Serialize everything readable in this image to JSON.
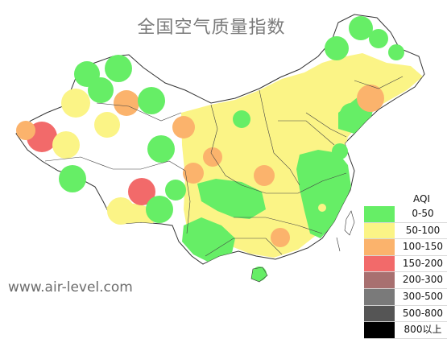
{
  "map": {
    "title": "全国空气质量指数",
    "watermark": "www.air-level.com",
    "colors": {
      "land": "#ffffff",
      "outline": "#333333",
      "green": "#66ee66",
      "yellow": "#fbf486",
      "orange": "#fbb36c",
      "red": "#f26a6a"
    },
    "legend": {
      "title": "AQI",
      "items": [
        {
          "label": "0-50",
          "color": "#66ee66"
        },
        {
          "label": "50-100",
          "color": "#fbf486"
        },
        {
          "label": "100-150",
          "color": "#fbb36c"
        },
        {
          "label": "150-200",
          "color": "#f26a6a"
        },
        {
          "label": "200-300",
          "color": "#a87070"
        },
        {
          "label": "300-500",
          "color": "#7a7a7a"
        },
        {
          "label": "500-800",
          "color": "#555555"
        },
        {
          "label": "800以上",
          "color": "#000000"
        }
      ]
    }
  }
}
